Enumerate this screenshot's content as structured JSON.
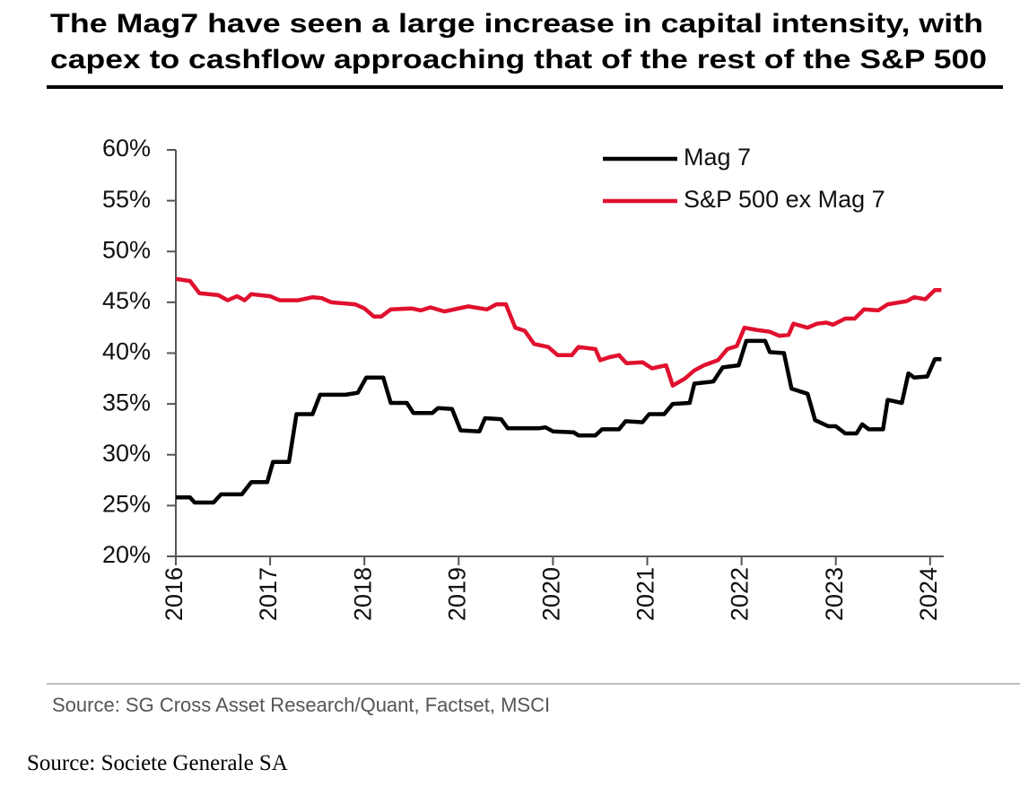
{
  "chart_data": {
    "type": "line",
    "title": [
      "The Mag7 have seen a large increase in capital intensity, with",
      "capex to cashflow approaching that of the rest of the S&P 500"
    ],
    "note": "Source: SG Cross Asset Research/Quant, Factset, MSCI",
    "xlim": [
      2016,
      2024.15
    ],
    "xticks": [
      2016,
      2017,
      2018,
      2019,
      2020,
      2021,
      2022,
      2023,
      2024
    ],
    "ylim": [
      20,
      60
    ],
    "yticks": [
      {
        "value": 20,
        "label": "20%"
      },
      {
        "value": 25,
        "label": "25%"
      },
      {
        "value": 30,
        "label": "30%"
      },
      {
        "value": 35,
        "label": "35%"
      },
      {
        "value": 40,
        "label": "40%"
      },
      {
        "value": 45,
        "label": "45%"
      },
      {
        "value": 50,
        "label": "50%"
      },
      {
        "value": 55,
        "label": "55%"
      },
      {
        "value": 60,
        "label": "60%"
      }
    ],
    "legend": "upper right",
    "series": [
      {
        "name": "Mag 7",
        "color": "#000000",
        "x": [
          2016.0,
          2016.15,
          2016.2,
          2016.4,
          2016.48,
          2016.7,
          2016.8,
          2016.97,
          2017.03,
          2017.2,
          2017.28,
          2017.45,
          2017.53,
          2017.8,
          2017.93,
          2018.02,
          2018.2,
          2018.28,
          2018.45,
          2018.52,
          2018.72,
          2018.78,
          2018.93,
          2019.02,
          2019.22,
          2019.28,
          2019.45,
          2019.52,
          2019.85,
          2019.92,
          2020.0,
          2020.22,
          2020.27,
          2020.45,
          2020.52,
          2020.7,
          2020.77,
          2020.95,
          2021.02,
          2021.18,
          2021.27,
          2021.45,
          2021.5,
          2021.7,
          2021.8,
          2021.97,
          2022.05,
          2022.25,
          2022.3,
          2022.45,
          2022.53,
          2022.7,
          2022.78,
          2022.92,
          2023.0,
          2023.1,
          2023.22,
          2023.28,
          2023.35,
          2023.5,
          2023.55,
          2023.7,
          2023.77,
          2023.83,
          2023.97,
          2024.05,
          2024.12
        ],
        "values": [
          25.8,
          25.8,
          25.3,
          25.3,
          26.1,
          26.1,
          27.3,
          27.3,
          29.3,
          29.3,
          34.0,
          34.0,
          35.9,
          35.9,
          36.1,
          37.6,
          37.6,
          35.1,
          35.1,
          34.1,
          34.1,
          34.6,
          34.5,
          32.4,
          32.3,
          33.6,
          33.5,
          32.6,
          32.6,
          32.7,
          32.3,
          32.2,
          31.9,
          31.9,
          32.5,
          32.5,
          33.3,
          33.2,
          34.0,
          34.0,
          35.0,
          35.1,
          37.0,
          37.2,
          38.6,
          38.8,
          41.2,
          41.2,
          40.1,
          40.0,
          36.5,
          36.0,
          33.4,
          32.8,
          32.8,
          32.1,
          32.1,
          33.0,
          32.5,
          32.5,
          35.4,
          35.1,
          38.0,
          37.6,
          37.7,
          39.4,
          39.4
        ]
      },
      {
        "name": "S&P 500 ex Mag 7",
        "color": "#e0102e",
        "x": [
          2016.0,
          2016.15,
          2016.25,
          2016.45,
          2016.55,
          2016.65,
          2016.73,
          2016.8,
          2017.0,
          2017.1,
          2017.3,
          2017.45,
          2017.55,
          2017.65,
          2017.9,
          2018.0,
          2018.1,
          2018.18,
          2018.28,
          2018.5,
          2018.6,
          2018.7,
          2018.85,
          2019.0,
          2019.1,
          2019.3,
          2019.4,
          2019.5,
          2019.6,
          2019.7,
          2019.8,
          2019.95,
          2020.05,
          2020.2,
          2020.27,
          2020.45,
          2020.5,
          2020.6,
          2020.7,
          2020.78,
          2020.95,
          2021.05,
          2021.2,
          2021.27,
          2021.4,
          2021.5,
          2021.6,
          2021.75,
          2021.85,
          2021.95,
          2022.03,
          2022.15,
          2022.3,
          2022.4,
          2022.5,
          2022.55,
          2022.7,
          2022.8,
          2022.9,
          2022.97,
          2023.1,
          2023.2,
          2023.3,
          2023.45,
          2023.55,
          2023.75,
          2023.83,
          2023.95,
          2024.05,
          2024.12
        ],
        "values": [
          47.3,
          47.1,
          45.9,
          45.7,
          45.2,
          45.6,
          45.2,
          45.8,
          45.6,
          45.2,
          45.2,
          45.5,
          45.4,
          45.0,
          44.8,
          44.4,
          43.6,
          43.6,
          44.3,
          44.4,
          44.2,
          44.5,
          44.1,
          44.4,
          44.6,
          44.3,
          44.8,
          44.8,
          42.5,
          42.2,
          40.9,
          40.6,
          39.8,
          39.8,
          40.6,
          40.4,
          39.3,
          39.6,
          39.8,
          39.0,
          39.1,
          38.5,
          38.8,
          36.8,
          37.5,
          38.3,
          38.8,
          39.3,
          40.4,
          40.7,
          42.5,
          42.3,
          42.1,
          41.7,
          41.8,
          42.9,
          42.5,
          42.9,
          43.0,
          42.8,
          43.4,
          43.4,
          44.3,
          44.2,
          44.8,
          45.1,
          45.5,
          45.3,
          46.2,
          46.2
        ]
      }
    ]
  },
  "caption": "Source: Societe Generale SA"
}
